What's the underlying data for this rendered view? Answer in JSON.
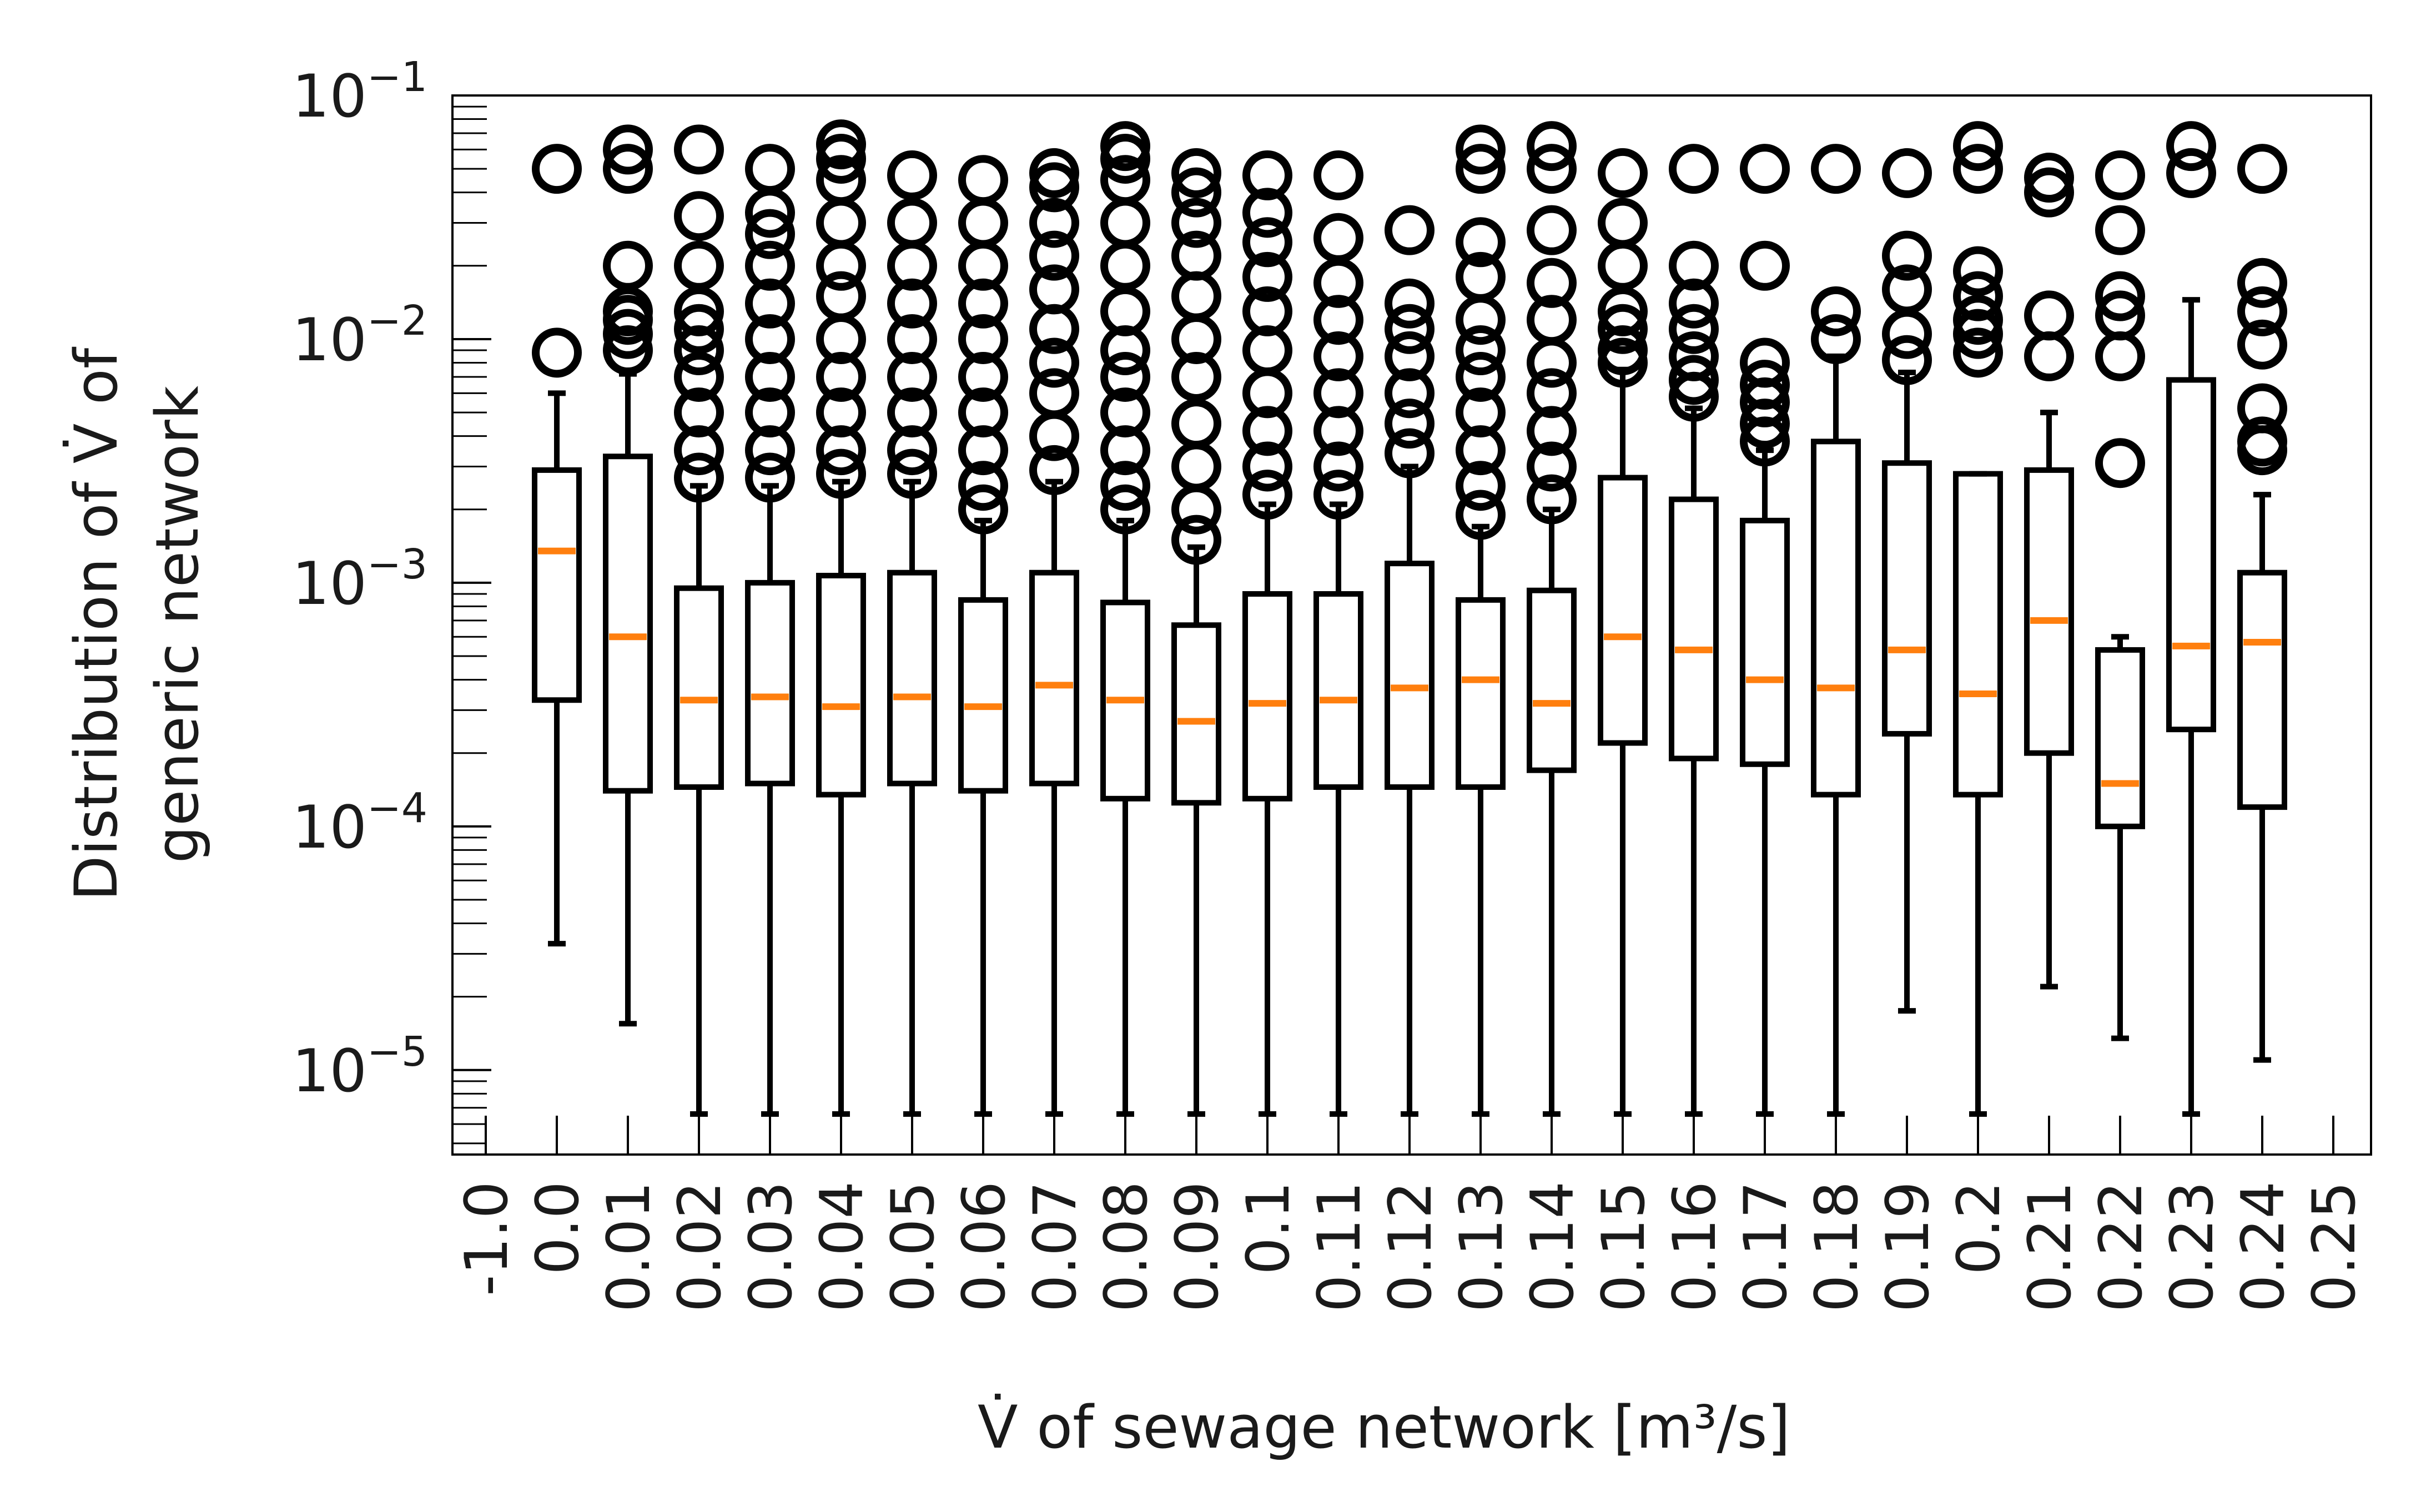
{
  "chart_data": {
    "type": "box",
    "title": "",
    "xlabel": "V̇ of sewage network [m³/s]",
    "ylabel_line1": "Distribution of V̇ of",
    "ylabel_line2": "generic network",
    "yscale": "log",
    "ylim": [
      4.5e-06,
      0.1
    ],
    "grid": false,
    "legend": "none",
    "y_ticks": [
      {
        "value": 1e-05,
        "base": "10",
        "exp": "−5"
      },
      {
        "value": 0.0001,
        "base": "10",
        "exp": "−4"
      },
      {
        "value": 0.001,
        "base": "10",
        "exp": "−3"
      },
      {
        "value": 0.01,
        "base": "10",
        "exp": "−2"
      },
      {
        "value": 0.1,
        "base": "10",
        "exp": "−1"
      }
    ],
    "categories": [
      "-1.0",
      "0.0",
      "0.01",
      "0.02",
      "0.03",
      "0.04",
      "0.05",
      "0.06",
      "0.07",
      "0.08",
      "0.09",
      "0.1",
      "0.11",
      "0.12",
      "0.13",
      "0.14",
      "0.15",
      "0.16",
      "0.17",
      "0.18",
      "0.19",
      "0.2",
      "0.21",
      "0.22",
      "0.23",
      "0.24",
      "0.25"
    ],
    "colors": {
      "box": "#000000",
      "median": "#ff7f0e",
      "axis": "#000000"
    },
    "boxes": [
      {
        "category": "0.0",
        "whislo": 3.3e-05,
        "q1": 0.00033,
        "med": 0.00135,
        "q3": 0.0029,
        "whishi": 0.006,
        "fliers": [
          0.0088,
          0.05
        ]
      },
      {
        "category": "0.01",
        "whislo": 1.55e-05,
        "q1": 0.00014,
        "med": 0.0006,
        "q3": 0.0033,
        "whishi": 0.0072,
        "fliers": [
          0.009,
          0.0105,
          0.012,
          0.013,
          0.02,
          0.05,
          0.06
        ]
      },
      {
        "category": "0.02",
        "whislo": 6.6e-06,
        "q1": 0.000145,
        "med": 0.00033,
        "q3": 0.00095,
        "whishi": 0.0025,
        "fliers": [
          0.0027,
          0.0035,
          0.005,
          0.007,
          0.009,
          0.011,
          0.013,
          0.02,
          0.032,
          0.06
        ]
      },
      {
        "category": "0.03",
        "whislo": 6.6e-06,
        "q1": 0.00015,
        "med": 0.00034,
        "q3": 0.001,
        "whishi": 0.0025,
        "fliers": [
          0.0027,
          0.0035,
          0.005,
          0.007,
          0.01,
          0.014,
          0.02,
          0.027,
          0.033,
          0.05
        ]
      },
      {
        "category": "0.04",
        "whislo": 6.6e-06,
        "q1": 0.000135,
        "med": 0.00031,
        "q3": 0.00107,
        "whishi": 0.0026,
        "fliers": [
          0.0028,
          0.0035,
          0.005,
          0.007,
          0.01,
          0.015,
          0.02,
          0.03,
          0.045,
          0.055,
          0.063
        ]
      },
      {
        "category": "0.05",
        "whislo": 6.6e-06,
        "q1": 0.00015,
        "med": 0.00034,
        "q3": 0.0011,
        "whishi": 0.0026,
        "fliers": [
          0.0028,
          0.0035,
          0.005,
          0.007,
          0.01,
          0.014,
          0.02,
          0.03,
          0.047
        ]
      },
      {
        "category": "0.06",
        "whislo": 6.6e-06,
        "q1": 0.00014,
        "med": 0.00031,
        "q3": 0.00085,
        "whishi": 0.0018,
        "fliers": [
          0.002,
          0.0025,
          0.0035,
          0.005,
          0.007,
          0.01,
          0.014,
          0.02,
          0.03,
          0.045
        ]
      },
      {
        "category": "0.07",
        "whislo": 6.6e-06,
        "q1": 0.00015,
        "med": 0.00038,
        "q3": 0.0011,
        "whishi": 0.0026,
        "fliers": [
          0.0029,
          0.004,
          0.006,
          0.008,
          0.011,
          0.016,
          0.022,
          0.03,
          0.042,
          0.048
        ]
      },
      {
        "category": "0.08",
        "whislo": 6.6e-06,
        "q1": 0.00013,
        "med": 0.00033,
        "q3": 0.00083,
        "whishi": 0.0018,
        "fliers": [
          0.002,
          0.0025,
          0.0035,
          0.005,
          0.007,
          0.009,
          0.013,
          0.02,
          0.03,
          0.045,
          0.055,
          0.062
        ]
      },
      {
        "category": "0.09",
        "whislo": 6.6e-06,
        "q1": 0.000125,
        "med": 0.00027,
        "q3": 0.00067,
        "whishi": 0.0014,
        "fliers": [
          0.0015,
          0.002,
          0.003,
          0.0045,
          0.007,
          0.01,
          0.015,
          0.022,
          0.03,
          0.04,
          0.048
        ]
      },
      {
        "category": "0.1",
        "whislo": 6.6e-06,
        "q1": 0.00013,
        "med": 0.00032,
        "q3": 0.0009,
        "whishi": 0.0021,
        "fliers": [
          0.0023,
          0.003,
          0.0042,
          0.006,
          0.009,
          0.013,
          0.018,
          0.025,
          0.033,
          0.047
        ]
      },
      {
        "category": "0.11",
        "whislo": 6.6e-06,
        "q1": 0.000145,
        "med": 0.00033,
        "q3": 0.0009,
        "whishi": 0.0021,
        "fliers": [
          0.0023,
          0.003,
          0.0042,
          0.006,
          0.0085,
          0.012,
          0.017,
          0.026,
          0.047
        ]
      },
      {
        "category": "0.12",
        "whislo": 6.6e-06,
        "q1": 0.000145,
        "med": 0.00037,
        "q3": 0.0012,
        "whishi": 0.003,
        "fliers": [
          0.0034,
          0.0045,
          0.006,
          0.0085,
          0.011,
          0.014,
          0.028
        ]
      },
      {
        "category": "0.13",
        "whislo": 6.6e-06,
        "q1": 0.000145,
        "med": 0.0004,
        "q3": 0.00085,
        "whishi": 0.0017,
        "fliers": [
          0.0019,
          0.0025,
          0.0035,
          0.005,
          0.007,
          0.009,
          0.012,
          0.018,
          0.025,
          0.05,
          0.06
        ]
      },
      {
        "category": "0.14",
        "whislo": 6.6e-06,
        "q1": 0.00017,
        "med": 0.00032,
        "q3": 0.00093,
        "whishi": 0.002,
        "fliers": [
          0.0022,
          0.003,
          0.0042,
          0.006,
          0.008,
          0.012,
          0.017,
          0.028,
          0.05,
          0.062
        ]
      },
      {
        "category": "0.15",
        "whislo": 6.6e-06,
        "q1": 0.00022,
        "med": 0.0006,
        "q3": 0.0027,
        "whishi": 0.0075,
        "fliers": [
          0.008,
          0.009,
          0.011,
          0.013,
          0.02,
          0.03,
          0.048
        ]
      },
      {
        "category": "0.16",
        "whislo": 6.6e-06,
        "q1": 0.00019,
        "med": 0.00053,
        "q3": 0.0022,
        "whishi": 0.0052,
        "fliers": [
          0.0058,
          0.0068,
          0.0085,
          0.011,
          0.014,
          0.02,
          0.05
        ]
      },
      {
        "category": "0.17",
        "whislo": 6.6e-06,
        "q1": 0.00018,
        "med": 0.0004,
        "q3": 0.0018,
        "whishi": 0.0035,
        "fliers": [
          0.0038,
          0.0045,
          0.0055,
          0.0065,
          0.008,
          0.02,
          0.05
        ]
      },
      {
        "category": "0.18",
        "whislo": 6.6e-06,
        "q1": 0.000135,
        "med": 0.00037,
        "q3": 0.0038,
        "whishi": 0.0085,
        "fliers": [
          0.01,
          0.013,
          0.05
        ]
      },
      {
        "category": "0.19",
        "whislo": 1.75e-05,
        "q1": 0.00024,
        "med": 0.00053,
        "q3": 0.0031,
        "whishi": 0.0073,
        "fliers": [
          0.0082,
          0.0105,
          0.016,
          0.022,
          0.048
        ]
      },
      {
        "category": "0.2",
        "whislo": 6.6e-06,
        "q1": 0.000135,
        "med": 0.00035,
        "q3": 0.0028,
        "whishi": 0.0028,
        "fliers": [
          0.0088,
          0.0105,
          0.012,
          0.015,
          0.019,
          0.05,
          0.062
        ]
      },
      {
        "category": "0.21",
        "whislo": 2.2e-05,
        "q1": 0.0002,
        "med": 0.0007,
        "q3": 0.0029,
        "whishi": 0.005,
        "fliers": [
          0.0085,
          0.0125,
          0.04,
          0.046
        ]
      },
      {
        "category": "0.22",
        "whislo": 1.35e-05,
        "q1": 0.0001,
        "med": 0.00015,
        "q3": 0.00053,
        "whishi": 0.0006,
        "fliers": [
          0.0031,
          0.0085,
          0.0125,
          0.015,
          0.028,
          0.047
        ]
      },
      {
        "category": "0.23",
        "whislo": 6.6e-06,
        "q1": 0.00025,
        "med": 0.00055,
        "q3": 0.0068,
        "whishi": 0.0145,
        "fliers": [
          0.048,
          0.062
        ]
      },
      {
        "category": "0.24",
        "whislo": 1.1e-05,
        "q1": 0.00012,
        "med": 0.00057,
        "q3": 0.0011,
        "whishi": 0.0023,
        "fliers": [
          0.0035,
          0.0038,
          0.0052,
          0.0095,
          0.013,
          0.017,
          0.05
        ]
      }
    ]
  }
}
